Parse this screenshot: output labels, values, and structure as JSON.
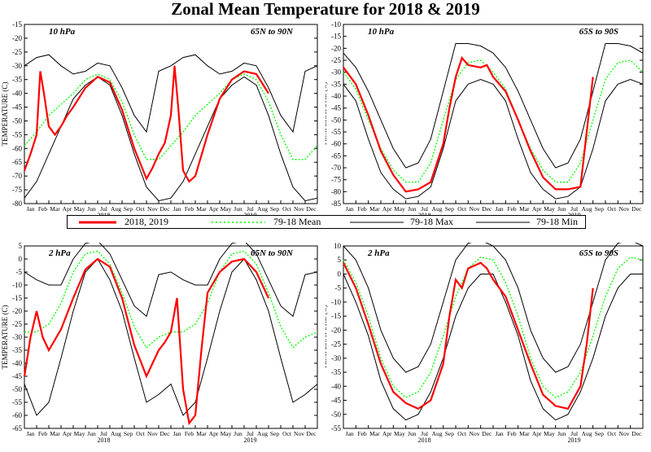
{
  "title": "Zonal Mean Temperature for 2018 & 2019",
  "legend": [
    {
      "label": "2018, 2019",
      "color": "#ff0000",
      "style": "solid-thick"
    },
    {
      "label": "79-18 Mean",
      "color": "#00ff00",
      "style": "dotted"
    },
    {
      "label": "79-18 Max",
      "color": "#000000",
      "style": "solid"
    },
    {
      "label": "79-18 Min",
      "color": "#000000",
      "style": "solid"
    }
  ],
  "colors": {
    "observed": "#ff0000",
    "mean": "#00ff00",
    "max": "#000000",
    "min": "#000000"
  },
  "chart_data": [
    {
      "type": "line",
      "pressure": "10 hPa",
      "region": "65N to 90N",
      "ylabel": "TEMPERATURE (C)",
      "ylim": [
        -80,
        -15
      ],
      "yticks": [
        -80,
        -75,
        -70,
        -65,
        -60,
        -55,
        -50,
        -45,
        -40,
        -35,
        -30,
        -25,
        -20,
        -15
      ],
      "month_ticks": [
        "Jan",
        "Feb",
        "Mar",
        "Apr",
        "May",
        "Jun",
        "Jul",
        "Aug",
        "Sep",
        "Oct",
        "Nov",
        "Dec",
        "Jan",
        "Feb",
        "Mar",
        "Apr",
        "May",
        "Jun",
        "Jul",
        "Aug",
        "Sep",
        "Oct",
        "Nov",
        "Dec"
      ],
      "year_labels": [
        "2018",
        "2019"
      ],
      "x_unit": "month index (0 = 1 Jan 2018)",
      "series": [
        {
          "name": "79-18 Mean",
          "x": [
            0,
            1,
            2,
            3,
            4,
            5,
            6,
            7,
            8,
            9,
            10,
            11,
            12,
            13,
            14,
            15,
            16,
            17,
            18,
            19,
            20,
            21,
            22,
            23,
            24
          ],
          "y": [
            -59,
            -54,
            -48,
            -44,
            -40,
            -35,
            -33,
            -35,
            -43,
            -55,
            -64,
            -64,
            -59,
            -54,
            -48,
            -44,
            -40,
            -35,
            -33,
            -35,
            -43,
            -55,
            -64,
            -64,
            -59
          ]
        },
        {
          "name": "79-18 Max",
          "x": [
            0,
            1,
            2,
            3,
            4,
            5,
            6,
            7,
            8,
            9,
            10,
            11,
            12,
            13,
            14,
            15,
            16,
            17,
            18,
            19,
            20,
            21,
            22,
            23,
            24
          ],
          "y": [
            -30,
            -27,
            -26,
            -30,
            -33,
            -32,
            -29,
            -30,
            -38,
            -48,
            -54,
            -32,
            -30,
            -27,
            -26,
            -30,
            -33,
            -32,
            -29,
            -30,
            -38,
            -48,
            -54,
            -32,
            -30
          ]
        },
        {
          "name": "79-18 Min",
          "x": [
            0,
            1,
            2,
            3,
            4,
            5,
            6,
            7,
            8,
            9,
            10,
            11,
            12,
            13,
            14,
            15,
            16,
            17,
            18,
            19,
            20,
            21,
            22,
            23,
            24
          ],
          "y": [
            -78,
            -72,
            -62,
            -52,
            -42,
            -37,
            -34,
            -37,
            -48,
            -62,
            -74,
            -79,
            -78,
            -72,
            -62,
            -52,
            -42,
            -37,
            -34,
            -37,
            -48,
            -62,
            -74,
            -79,
            -78
          ]
        },
        {
          "name": "2018, 2019",
          "x": [
            0,
            0.5,
            1,
            1.3,
            1.6,
            2,
            2.5,
            3,
            3.5,
            4,
            5,
            6,
            7,
            8,
            9,
            10,
            10.5,
            11,
            11.5,
            12,
            12.3,
            12.6,
            13,
            13.5,
            14,
            15,
            16,
            17,
            18,
            19,
            20
          ],
          "y": [
            -68,
            -62,
            -55,
            -32,
            -40,
            -52,
            -55,
            -52,
            -48,
            -45,
            -38,
            -34,
            -36,
            -46,
            -60,
            -71,
            -67,
            -62,
            -58,
            -48,
            -30,
            -45,
            -68,
            -72,
            -70,
            -55,
            -42,
            -35,
            -32,
            -33,
            -40
          ]
        }
      ]
    },
    {
      "type": "line",
      "pressure": "10 hPa",
      "region": "65S to 90S",
      "ylabel": "TEMPERATURE (C)",
      "ylim": [
        -85,
        -10
      ],
      "yticks": [
        -85,
        -80,
        -75,
        -70,
        -65,
        -60,
        -55,
        -50,
        -45,
        -40,
        -35,
        -30,
        -25,
        -20,
        -15,
        -10
      ],
      "month_ticks": [
        "Jan",
        "Feb",
        "Mar",
        "Apr",
        "May",
        "Jun",
        "Jul",
        "Aug",
        "Sep",
        "Oct",
        "Nov",
        "Dec",
        "Jan",
        "Feb",
        "Mar",
        "Apr",
        "May",
        "Jun",
        "Jul",
        "Aug",
        "Sep",
        "Oct",
        "Nov",
        "Dec"
      ],
      "year_labels": [
        "2018",
        "2019"
      ],
      "x_unit": "month index (0 = 1 Jan 2018)",
      "series": [
        {
          "name": "79-18 Mean",
          "x": [
            0,
            1,
            2,
            3,
            4,
            5,
            6,
            7,
            8,
            9,
            10,
            11,
            12,
            13,
            14,
            15,
            16,
            17,
            18,
            19,
            20,
            21,
            22,
            23,
            24
          ],
          "y": [
            -30,
            -37,
            -50,
            -62,
            -71,
            -76,
            -76,
            -68,
            -50,
            -33,
            -26,
            -25,
            -30,
            -37,
            -50,
            -62,
            -71,
            -76,
            -76,
            -68,
            -50,
            -33,
            -26,
            -25,
            -30
          ]
        },
        {
          "name": "79-18 Max",
          "x": [
            0,
            1,
            2,
            3,
            4,
            5,
            6,
            7,
            8,
            9,
            10,
            11,
            12,
            13,
            14,
            15,
            16,
            17,
            18,
            19,
            20,
            21,
            22,
            23,
            24
          ],
          "y": [
            -22,
            -28,
            -38,
            -50,
            -62,
            -70,
            -68,
            -58,
            -38,
            -18,
            -18,
            -19,
            -22,
            -28,
            -38,
            -50,
            -62,
            -70,
            -68,
            -58,
            -38,
            -18,
            -18,
            -19,
            -22
          ]
        },
        {
          "name": "79-18 Min",
          "x": [
            0,
            1,
            2,
            3,
            4,
            5,
            6,
            7,
            8,
            9,
            10,
            11,
            12,
            13,
            14,
            15,
            16,
            17,
            18,
            19,
            20,
            21,
            22,
            23,
            24
          ],
          "y": [
            -35,
            -42,
            -58,
            -72,
            -79,
            -83,
            -82,
            -78,
            -62,
            -42,
            -35,
            -33,
            -35,
            -42,
            -58,
            -72,
            -79,
            -83,
            -82,
            -78,
            -62,
            -42,
            -35,
            -33,
            -35
          ]
        },
        {
          "name": "2018, 2019",
          "x": [
            0,
            1,
            2,
            3,
            4,
            5,
            6,
            7,
            8,
            8.5,
            9,
            9.5,
            10,
            11,
            11.5,
            12,
            13,
            14,
            15,
            16,
            17,
            18,
            19,
            19.5,
            20
          ],
          "y": [
            -28,
            -35,
            -48,
            -63,
            -73,
            -80,
            -79,
            -76,
            -60,
            -45,
            -32,
            -24,
            -27,
            -28,
            -27,
            -32,
            -38,
            -50,
            -63,
            -74,
            -79,
            -79,
            -78,
            -55,
            -32
          ]
        }
      ]
    },
    {
      "type": "line",
      "pressure": "2 hPa",
      "region": "65N to 90N",
      "ylabel": "TEMPERATURE (C)",
      "ylim": [
        -65,
        5
      ],
      "yticks": [
        -65,
        -60,
        -55,
        -50,
        -45,
        -40,
        -35,
        -30,
        -25,
        -20,
        -15,
        -10,
        -5,
        0,
        5
      ],
      "month_ticks": [
        "Jan",
        "Feb",
        "Mar",
        "Apr",
        "May",
        "Jun",
        "Jul",
        "Aug",
        "Sep",
        "Oct",
        "Nov",
        "Dec",
        "Jan",
        "Feb",
        "Mar",
        "Apr",
        "May",
        "Jun",
        "Jul",
        "Aug",
        "Sep",
        "Oct",
        "Nov",
        "Dec"
      ],
      "year_labels": [
        "2018",
        "2019"
      ],
      "x_unit": "month index (0 = 1 Jan 2018)",
      "series": [
        {
          "name": "79-18 Mean",
          "x": [
            0,
            1,
            2,
            3,
            4,
            5,
            6,
            7,
            8,
            9,
            10,
            11,
            12,
            13,
            14,
            15,
            16,
            17,
            18,
            19,
            20,
            21,
            22,
            23,
            24
          ],
          "y": [
            -28,
            -28,
            -25,
            -17,
            -5,
            2,
            3,
            -2,
            -13,
            -26,
            -34,
            -30,
            -28,
            -28,
            -25,
            -17,
            -5,
            2,
            3,
            -2,
            -13,
            -26,
            -34,
            -30,
            -28
          ]
        },
        {
          "name": "79-18 Max",
          "x": [
            0,
            1,
            2,
            3,
            4,
            5,
            6,
            7,
            8,
            9,
            10,
            11,
            12,
            13,
            14,
            15,
            16,
            17,
            18,
            19,
            20,
            21,
            22,
            23,
            24
          ],
          "y": [
            -5,
            -8,
            -10,
            -10,
            0,
            6,
            7,
            2,
            -8,
            -18,
            -22,
            -6,
            -5,
            -8,
            -10,
            -10,
            0,
            6,
            7,
            2,
            -8,
            -18,
            -22,
            -6,
            -5
          ]
        },
        {
          "name": "79-18 Min",
          "x": [
            0,
            1,
            2,
            3,
            4,
            5,
            6,
            7,
            8,
            9,
            10,
            11,
            12,
            13,
            14,
            15,
            16,
            17,
            18,
            19,
            20,
            21,
            22,
            23,
            24
          ],
          "y": [
            -48,
            -60,
            -55,
            -38,
            -20,
            -5,
            0,
            -8,
            -20,
            -38,
            -55,
            -52,
            -48,
            -60,
            -55,
            -38,
            -20,
            -5,
            0,
            -8,
            -20,
            -38,
            -55,
            -52,
            -48
          ]
        },
        {
          "name": "2018, 2019",
          "x": [
            0,
            0.5,
            1,
            1.5,
            2,
            3,
            4,
            5,
            6,
            7,
            8,
            9,
            10,
            10.5,
            11,
            11.5,
            12,
            12.5,
            13,
            13.5,
            14,
            14.5,
            15,
            16,
            17,
            18,
            19,
            20
          ],
          "y": [
            -45,
            -30,
            -20,
            -30,
            -35,
            -27,
            -15,
            -4,
            0,
            -3,
            -15,
            -33,
            -45,
            -40,
            -35,
            -32,
            -28,
            -15,
            -50,
            -63,
            -60,
            -35,
            -13,
            -5,
            -1,
            0,
            -5,
            -15
          ]
        }
      ]
    },
    {
      "type": "line",
      "pressure": "2 hPa",
      "region": "65S to 90S",
      "ylabel": "TEMPERATURE (C)",
      "ylim": [
        -55,
        10
      ],
      "yticks": [
        -55,
        -50,
        -45,
        -40,
        -35,
        -30,
        -25,
        -20,
        -15,
        -10,
        -5,
        0,
        5,
        10
      ],
      "month_ticks": [
        "Jan",
        "Feb",
        "Mar",
        "Apr",
        "May",
        "Jun",
        "Jul",
        "Aug",
        "Sep",
        "Oct",
        "Nov",
        "Dec",
        "Jan",
        "Feb",
        "Mar",
        "Apr",
        "May",
        "Jun",
        "Jul",
        "Aug",
        "Sep",
        "Oct",
        "Nov",
        "Dec"
      ],
      "year_labels": [
        "2018",
        "2019"
      ],
      "x_unit": "month index (0 = 1 Jan 2018)",
      "series": [
        {
          "name": "79-18 Mean",
          "x": [
            0,
            1,
            2,
            3,
            4,
            5,
            6,
            7,
            8,
            9,
            10,
            11,
            12,
            13,
            14,
            15,
            16,
            17,
            18,
            19,
            20,
            21,
            22,
            23,
            24
          ],
          "y": [
            5,
            -3,
            -15,
            -30,
            -40,
            -44,
            -42,
            -35,
            -22,
            -8,
            2,
            6,
            5,
            -3,
            -15,
            -30,
            -40,
            -44,
            -42,
            -35,
            -22,
            -8,
            2,
            6,
            5
          ]
        },
        {
          "name": "79-18 Max",
          "x": [
            0,
            1,
            2,
            3,
            4,
            5,
            6,
            7,
            8,
            9,
            10,
            11,
            12,
            13,
            14,
            15,
            16,
            17,
            18,
            19,
            20,
            21,
            22,
            23,
            24
          ],
          "y": [
            10,
            5,
            -5,
            -20,
            -30,
            -35,
            -33,
            -25,
            -10,
            5,
            11,
            12,
            10,
            5,
            -5,
            -20,
            -30,
            -35,
            -33,
            -25,
            -10,
            5,
            11,
            12,
            10
          ]
        },
        {
          "name": "79-18 Min",
          "x": [
            0,
            1,
            2,
            3,
            4,
            5,
            6,
            7,
            8,
            9,
            10,
            11,
            12,
            13,
            14,
            15,
            16,
            17,
            18,
            19,
            20,
            21,
            22,
            23,
            24
          ],
          "y": [
            0,
            -10,
            -22,
            -38,
            -48,
            -52,
            -50,
            -42,
            -30,
            -15,
            -5,
            0,
            0,
            -10,
            -22,
            -38,
            -48,
            -52,
            -50,
            -42,
            -30,
            -15,
            -5,
            0,
            0
          ]
        },
        {
          "name": "2018, 2019",
          "x": [
            0,
            1,
            2,
            3,
            4,
            5,
            6,
            7,
            8,
            8.5,
            9,
            9.5,
            10,
            11,
            11.5,
            12,
            13,
            14,
            15,
            16,
            17,
            18,
            19,
            19.5,
            20
          ],
          "y": [
            4,
            -5,
            -18,
            -32,
            -42,
            -46,
            -48,
            -45,
            -32,
            -15,
            -2,
            -5,
            2,
            4,
            2,
            -2,
            -8,
            -20,
            -32,
            -43,
            -47,
            -48,
            -40,
            -25,
            -5
          ]
        }
      ]
    }
  ]
}
